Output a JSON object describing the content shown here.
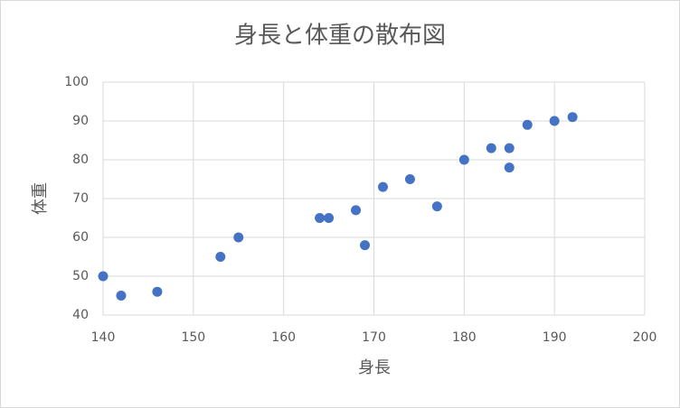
{
  "chart_data": {
    "type": "scatter",
    "title": "身長と体重の散布図",
    "x_label": "身長",
    "y_label": "体重",
    "series": [
      {
        "color": "#4472c4",
        "x": [
          140,
          142,
          146,
          153,
          155,
          164,
          165,
          168,
          169,
          171,
          174,
          177,
          180,
          183,
          185,
          185,
          187,
          190,
          192
        ],
        "values": [
          50,
          45,
          46,
          55,
          60,
          65,
          65,
          67,
          58,
          73,
          75,
          68,
          80,
          83,
          83,
          78,
          89,
          90,
          91
        ]
      }
    ],
    "xlim": [
      140,
      200
    ],
    "xticks": [
      140,
      150,
      160,
      170,
      180,
      190,
      200
    ],
    "ylim": [
      40,
      100
    ],
    "yticks": [
      40,
      50,
      60,
      70,
      80,
      90,
      100
    ],
    "grid": true
  }
}
